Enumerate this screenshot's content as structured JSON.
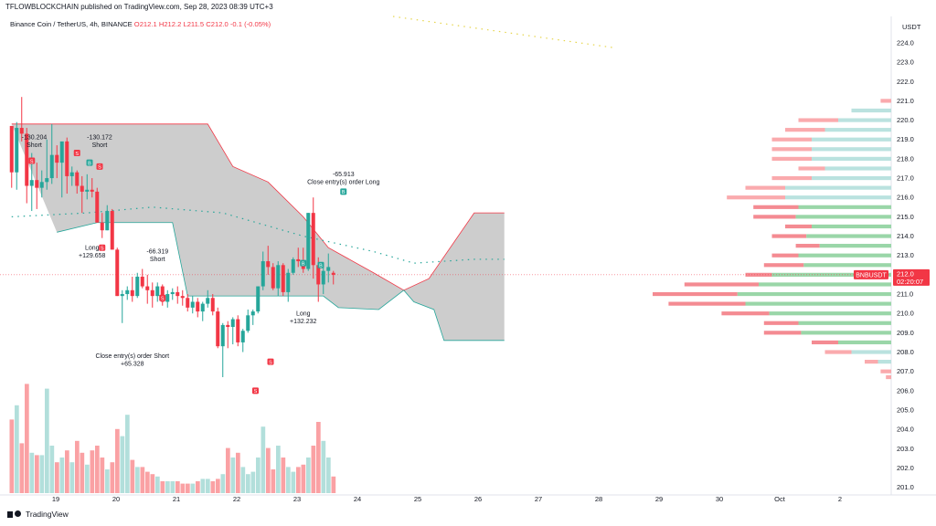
{
  "header": {
    "text": "TFLOWBLOCKCHAIN published on TradingView.com, Sep 28, 2023 08:39 UTC+3"
  },
  "legend": {
    "symbol": "Binance Coin / TetherUS, 4h, BINANCE",
    "open": "O212.1",
    "high": "H212.2",
    "low": "L211.5",
    "close": "C212.0",
    "change": "-0.1 (-0.05%)"
  },
  "footer": {
    "brand": "TradingView"
  },
  "colors": {
    "up": "#26a69a",
    "down": "#f23645",
    "band": "#c8c8c8",
    "volume_up": "#b2dfdb",
    "volume_down": "#faa1a4"
  },
  "chart_data": {
    "type": "candlestick",
    "price_axis": {
      "currency": "USDT",
      "ticks": [
        "224.0",
        "223.0",
        "222.0",
        "221.0",
        "220.0",
        "219.0",
        "218.0",
        "217.0",
        "216.0",
        "215.0",
        "214.0",
        "213.0",
        "212.0",
        "211.0",
        "210.0",
        "209.0",
        "208.0",
        "207.0",
        "206.0",
        "205.0",
        "204.0",
        "203.0",
        "202.0",
        "201.0"
      ],
      "range": [
        200.7,
        224.8
      ],
      "last_label": "BNBUSDT",
      "last_price": "212.0",
      "countdown": "02:20:07"
    },
    "time_axis": {
      "ticks": [
        "19",
        "20",
        "21",
        "22",
        "23",
        "24",
        "25",
        "26",
        "27",
        "28",
        "29",
        "30",
        "Oct",
        "2"
      ]
    },
    "candles": [
      [
        219.7,
        219.7,
        216.5,
        217.3
      ],
      [
        217.3,
        219.9,
        216.4,
        219.6
      ],
      [
        219.6,
        221.2,
        218.9,
        219.3
      ],
      [
        219.3,
        219.6,
        215.7,
        216.6
      ],
      [
        216.6,
        218.3,
        215.3,
        216.9
      ],
      [
        216.9,
        217.8,
        215.4,
        216.5
      ],
      [
        216.5,
        217.4,
        216.0,
        216.8
      ],
      [
        216.8,
        219.0,
        216.4,
        217.0
      ],
      [
        217.0,
        219.8,
        216.7,
        218.2
      ],
      [
        218.2,
        218.7,
        217.0,
        217.8
      ],
      [
        217.8,
        218.8,
        216.0,
        218.9
      ],
      [
        218.9,
        219.1,
        216.2,
        217.1
      ],
      [
        217.1,
        217.6,
        216.6,
        217.3
      ],
      [
        217.3,
        217.4,
        216.2,
        216.6
      ],
      [
        216.6,
        217.1,
        215.2,
        216.3
      ],
      [
        216.3,
        217.2,
        215.9,
        216.4
      ],
      [
        216.4,
        217.0,
        216.0,
        216.3
      ],
      [
        216.3,
        216.5,
        214.7,
        214.7
      ],
      [
        214.7,
        215.2,
        213.9,
        214.3
      ],
      [
        214.3,
        215.6,
        214.3,
        215.3
      ],
      [
        215.3,
        215.4,
        213.3,
        213.3
      ],
      [
        213.3,
        213.4,
        210.9,
        210.9
      ],
      [
        210.9,
        211.2,
        209.5,
        211.0
      ],
      [
        211.0,
        211.4,
        210.7,
        211.2
      ],
      [
        211.2,
        211.9,
        210.6,
        210.9
      ],
      [
        210.9,
        212.1,
        210.8,
        211.9
      ],
      [
        211.9,
        212.3,
        211.3,
        211.4
      ],
      [
        211.4,
        212.0,
        210.5,
        211.2
      ],
      [
        211.2,
        211.6,
        210.3,
        210.9
      ],
      [
        210.9,
        211.6,
        210.6,
        211.4
      ],
      [
        211.4,
        211.5,
        210.4,
        210.6
      ],
      [
        210.6,
        211.2,
        210.3,
        211.0
      ],
      [
        211.0,
        211.3,
        210.7,
        211.1
      ],
      [
        211.1,
        211.4,
        210.5,
        210.9
      ],
      [
        210.9,
        211.2,
        210.4,
        210.8
      ],
      [
        210.8,
        211.0,
        210.1,
        210.3
      ],
      [
        210.3,
        210.9,
        210.0,
        210.6
      ],
      [
        210.6,
        210.8,
        209.8,
        210.1
      ],
      [
        210.1,
        210.6,
        209.6,
        210.5
      ],
      [
        210.5,
        211.2,
        210.3,
        210.8
      ],
      [
        210.8,
        211.0,
        209.9,
        210.1
      ],
      [
        210.1,
        210.3,
        208.2,
        208.3
      ],
      [
        208.3,
        209.5,
        206.7,
        209.4
      ],
      [
        209.4,
        209.6,
        208.2,
        209.3
      ],
      [
        209.3,
        209.8,
        208.4,
        209.7
      ],
      [
        209.7,
        209.9,
        208.3,
        208.5
      ],
      [
        208.5,
        209.2,
        208.0,
        209.1
      ],
      [
        209.1,
        210.2,
        209.0,
        209.9
      ],
      [
        209.9,
        210.2,
        209.4,
        210.1
      ],
      [
        210.1,
        211.4,
        210.0,
        211.4
      ],
      [
        211.4,
        213.2,
        211.2,
        212.7
      ],
      [
        212.7,
        213.5,
        212.0,
        212.4
      ],
      [
        212.4,
        212.6,
        211.2,
        211.3
      ],
      [
        211.3,
        212.7,
        210.9,
        212.5
      ],
      [
        212.5,
        212.6,
        210.9,
        211.1
      ],
      [
        211.1,
        212.3,
        210.6,
        212.1
      ],
      [
        212.1,
        212.9,
        212.0,
        212.8
      ],
      [
        212.8,
        213.4,
        212.4,
        212.7
      ],
      [
        212.7,
        213.4,
        212.1,
        212.3
      ],
      [
        212.3,
        215.2,
        212.2,
        215.2
      ],
      [
        215.2,
        216.0,
        211.8,
        212.5
      ],
      [
        212.5,
        212.9,
        210.6,
        211.5
      ],
      [
        211.5,
        212.4,
        211.0,
        212.2
      ],
      [
        212.2,
        213.1,
        211.6,
        212.4
      ],
      [
        212.1,
        212.2,
        211.5,
        212.0
      ]
    ],
    "volume": [
      0.62,
      0.74,
      0.42,
      0.92,
      0.34,
      0.32,
      0.32,
      0.88,
      0.4,
      0.26,
      0.3,
      0.36,
      0.26,
      0.44,
      0.34,
      0.24,
      0.36,
      0.4,
      0.3,
      0.2,
      0.26,
      0.54,
      0.48,
      0.66,
      0.28,
      0.22,
      0.22,
      0.18,
      0.16,
      0.14,
      0.1,
      0.1,
      0.1,
      0.1,
      0.08,
      0.08,
      0.08,
      0.1,
      0.12,
      0.12,
      0.1,
      0.12,
      0.16,
      0.38,
      0.3,
      0.34,
      0.22,
      0.16,
      0.18,
      0.3,
      0.56,
      0.38,
      0.2,
      0.4,
      0.3,
      0.22,
      0.18,
      0.22,
      0.24,
      0.3,
      0.4,
      0.6,
      0.44,
      0.3,
      0.14
    ],
    "band": {
      "upper": [
        [
          0,
          219.8
        ],
        [
          39,
          219.8
        ],
        [
          44,
          217.6
        ],
        [
          51,
          216.8
        ],
        [
          58,
          215.0
        ],
        [
          63,
          213.4
        ],
        [
          72,
          212.1
        ],
        [
          78,
          211.2
        ],
        [
          83,
          211.8
        ],
        [
          92,
          215.2
        ],
        [
          98,
          215.2
        ]
      ],
      "lower": [
        [
          9,
          214.2
        ],
        [
          17,
          214.7
        ],
        [
          32,
          214.7
        ],
        [
          35,
          210.9
        ],
        [
          62,
          210.9
        ],
        [
          65,
          210.3
        ],
        [
          73,
          210.2
        ],
        [
          78,
          211.2
        ],
        [
          80,
          210.6
        ],
        [
          84,
          210.2
        ],
        [
          86,
          208.6
        ],
        [
          96,
          208.6
        ],
        [
          98,
          208.6
        ]
      ]
    },
    "dotted_line": [
      [
        0,
        215.0
      ],
      [
        15,
        215.2
      ],
      [
        28,
        215.5
      ],
      [
        42,
        215.2
      ],
      [
        58,
        214.0
      ],
      [
        72,
        213.2
      ],
      [
        80,
        212.6
      ],
      [
        92,
        212.8
      ],
      [
        98,
        212.8
      ]
    ],
    "volume_profile": [
      [
        221.0,
        0.04,
        0.0
      ],
      [
        220.5,
        0.15,
        0.15
      ],
      [
        220.0,
        0.35,
        0.2
      ],
      [
        219.5,
        0.4,
        0.25
      ],
      [
        219.0,
        0.45,
        0.3
      ],
      [
        218.5,
        0.45,
        0.3
      ],
      [
        218.0,
        0.45,
        0.3
      ],
      [
        217.5,
        0.35,
        0.25
      ],
      [
        217.0,
        0.45,
        0.3
      ],
      [
        216.5,
        0.55,
        0.4
      ],
      [
        216.0,
        0.62,
        0.4
      ],
      [
        215.5,
        0.52,
        0.35
      ],
      [
        215.0,
        0.52,
        0.36
      ],
      [
        214.5,
        0.4,
        0.3
      ],
      [
        214.0,
        0.45,
        0.32
      ],
      [
        213.5,
        0.36,
        0.27
      ],
      [
        213.0,
        0.45,
        0.35
      ],
      [
        212.5,
        0.48,
        0.33
      ],
      [
        212.0,
        0.55,
        0.45
      ],
      [
        211.5,
        0.78,
        0.5
      ],
      [
        211.0,
        0.9,
        0.58
      ],
      [
        210.5,
        0.84,
        0.55
      ],
      [
        210.0,
        0.64,
        0.46
      ],
      [
        209.5,
        0.48,
        0.35
      ],
      [
        209.0,
        0.48,
        0.34
      ],
      [
        208.5,
        0.3,
        0.2
      ],
      [
        208.0,
        0.25,
        0.15
      ],
      [
        207.5,
        0.1,
        0.05
      ],
      [
        207.0,
        0.04,
        0.0
      ],
      [
        206.7,
        0.02,
        0.0
      ]
    ],
    "markers": [
      {
        "type": "label",
        "bar": 4.5,
        "price": 219.0,
        "lines": [
          "-130.204",
          "Short"
        ],
        "color": "#131722"
      },
      {
        "type": "label",
        "bar": 17.5,
        "price": 219.0,
        "lines": [
          "-130.172",
          "Short"
        ],
        "color": "#131722"
      },
      {
        "type": "label",
        "bar": 16.0,
        "price": 213.3,
        "lines": [
          "Long",
          "+129.658"
        ],
        "color": "#131722"
      },
      {
        "type": "label",
        "bar": 29.0,
        "price": 213.1,
        "lines": [
          "-66.319",
          "Short"
        ],
        "color": "#131722"
      },
      {
        "type": "label",
        "bar": 24.0,
        "price": 207.7,
        "lines": [
          "Close entry(s) order Short",
          "+65.328"
        ],
        "color": "#131722"
      },
      {
        "type": "label",
        "bar": 58.0,
        "price": 209.9,
        "lines": [
          "Long",
          "+132.232"
        ],
        "color": "#131722"
      },
      {
        "type": "label",
        "bar": 66.0,
        "price": 217.1,
        "lines": [
          "-65.913",
          "Close entry(s) order Long"
        ],
        "color": "#131722"
      },
      {
        "type": "badge",
        "text": "S",
        "bar": 4.0,
        "price": 217.9,
        "color": "#f23645"
      },
      {
        "type": "badge",
        "text": "S",
        "bar": 13.0,
        "price": 218.3,
        "color": "#f23645"
      },
      {
        "type": "badge",
        "text": "B",
        "bar": 15.5,
        "price": 217.8,
        "color": "#26a69a"
      },
      {
        "type": "badge",
        "text": "S",
        "bar": 17.5,
        "price": 217.6,
        "color": "#f23645"
      },
      {
        "type": "badge",
        "text": "S",
        "bar": 18.0,
        "price": 213.4,
        "color": "#f23645"
      },
      {
        "type": "badge",
        "text": "S",
        "bar": 30.0,
        "price": 210.8,
        "color": "#f23645"
      },
      {
        "type": "badge",
        "text": "S",
        "bar": 48.5,
        "price": 206.0,
        "color": "#f23645"
      },
      {
        "type": "badge",
        "text": "S",
        "bar": 51.5,
        "price": 207.5,
        "color": "#f23645"
      },
      {
        "type": "badge",
        "text": "B",
        "bar": 58.0,
        "price": 212.6,
        "color": "#26a69a"
      },
      {
        "type": "badge",
        "text": "B",
        "bar": 61.5,
        "price": 212.5,
        "color": "#26a69a"
      },
      {
        "type": "badge",
        "text": "B",
        "bar": 66.0,
        "price": 216.3,
        "color": "#26a69a"
      }
    ]
  }
}
